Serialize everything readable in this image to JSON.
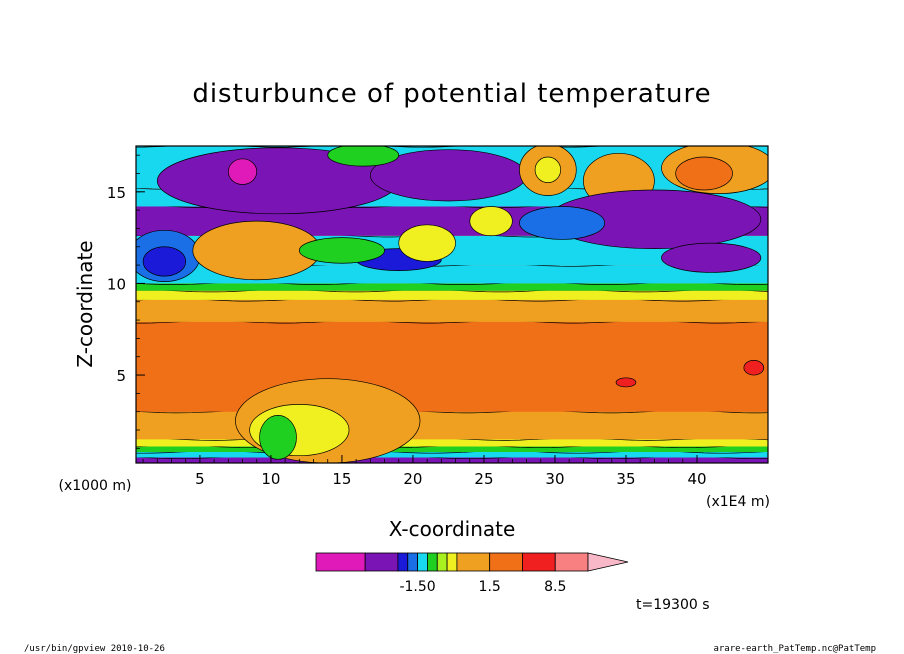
{
  "chart_data": {
    "type": "heatmap",
    "title": "disturbunce of potential temperature",
    "xlabel": "X-coordinate",
    "ylabel": "Z-coordinate",
    "x_unit_left": "(x1000 m)",
    "x_unit_right": "(x1E4 m)",
    "x_ticks": [
      "5",
      "10",
      "15",
      "20",
      "25",
      "30",
      "35",
      "40"
    ],
    "y_ticks": [
      "5",
      "10",
      "15"
    ],
    "xlim": [
      0.5,
      45
    ],
    "ylim": [
      0.2,
      17.5
    ],
    "colorbar": {
      "colors": [
        "#e01ab8",
        "#7a14b4",
        "#1a1ad8",
        "#1a6ee6",
        "#18d8f0",
        "#20d020",
        "#a8f020",
        "#f0f020",
        "#f0a020",
        "#f07018",
        "#f02020",
        "#f88080",
        "#f8b8c8"
      ],
      "labels": [
        {
          "text": "-1.50",
          "after_index": 3
        },
        {
          "text": "1.5",
          "after_index": 8
        },
        {
          "text": "8.5",
          "after_index": 10
        }
      ]
    },
    "bands": [
      {
        "z0": 0.2,
        "z1": 0.5,
        "color": "#7a14b4"
      },
      {
        "z0": 0.5,
        "z1": 0.8,
        "color": "#18d8f0"
      },
      {
        "z0": 0.8,
        "z1": 1.1,
        "color": "#20d020"
      },
      {
        "z0": 1.1,
        "z1": 1.5,
        "color": "#f0f020"
      },
      {
        "z0": 1.5,
        "z1": 3.0,
        "color": "#f0a020"
      },
      {
        "z0": 3.0,
        "z1": 7.9,
        "color": "#f07018"
      },
      {
        "z0": 7.9,
        "z1": 9.1,
        "color": "#f0a020"
      },
      {
        "z0": 9.1,
        "z1": 9.6,
        "color": "#f0f020"
      },
      {
        "z0": 9.6,
        "z1": 10.0,
        "color": "#20d020"
      },
      {
        "z0": 10.0,
        "z1": 11.0,
        "color": "#18d8f0"
      },
      {
        "z0": 11.0,
        "z1": 12.6,
        "color": "#18d8f0"
      },
      {
        "z0": 12.6,
        "z1": 14.2,
        "color": "#7a14b4"
      },
      {
        "z0": 14.2,
        "z1": 15.2,
        "color": "#18d8f0"
      },
      {
        "z0": 15.2,
        "z1": 17.5,
        "color": "#18d8f0"
      }
    ],
    "blobs": [
      {
        "x": 10.5,
        "z": 15.6,
        "rx": 8.5,
        "rz": 1.8,
        "color": "#7a14b4"
      },
      {
        "x": 22.5,
        "z": 15.9,
        "rx": 5.5,
        "rz": 1.4,
        "color": "#7a14b4"
      },
      {
        "x": 8.0,
        "z": 16.1,
        "rx": 1.0,
        "rz": 0.7,
        "color": "#e01ab8"
      },
      {
        "x": 16.5,
        "z": 17.0,
        "rx": 2.5,
        "rz": 0.6,
        "color": "#20d020"
      },
      {
        "x": 29.5,
        "z": 16.2,
        "rx": 2.0,
        "rz": 1.4,
        "color": "#f0a020"
      },
      {
        "x": 29.5,
        "z": 16.2,
        "rx": 0.9,
        "rz": 0.7,
        "color": "#f0f020"
      },
      {
        "x": 34.5,
        "z": 15.6,
        "rx": 2.5,
        "rz": 1.5,
        "color": "#f0a020"
      },
      {
        "x": 41.5,
        "z": 16.3,
        "rx": 4.0,
        "rz": 1.4,
        "color": "#f0a020"
      },
      {
        "x": 40.5,
        "z": 16.0,
        "rx": 2.0,
        "rz": 0.9,
        "color": "#f07018"
      },
      {
        "x": 37.0,
        "z": 13.5,
        "rx": 7.5,
        "rz": 1.6,
        "color": "#7a14b4"
      },
      {
        "x": 41.0,
        "z": 11.4,
        "rx": 3.5,
        "rz": 0.8,
        "color": "#7a14b4"
      },
      {
        "x": 30.5,
        "z": 13.3,
        "rx": 3.0,
        "rz": 0.9,
        "color": "#1a6ee6"
      },
      {
        "x": 2.5,
        "z": 11.5,
        "rx": 2.5,
        "rz": 1.4,
        "color": "#1a6ee6"
      },
      {
        "x": 2.5,
        "z": 11.2,
        "rx": 1.5,
        "rz": 0.8,
        "color": "#1a1ad8"
      },
      {
        "x": 9.0,
        "z": 11.8,
        "rx": 4.5,
        "rz": 1.6,
        "color": "#f0a020"
      },
      {
        "x": 19.0,
        "z": 11.3,
        "rx": 3.0,
        "rz": 0.6,
        "color": "#1a1ad8"
      },
      {
        "x": 21.0,
        "z": 12.2,
        "rx": 2.0,
        "rz": 1.0,
        "color": "#f0f020"
      },
      {
        "x": 25.5,
        "z": 13.4,
        "rx": 1.5,
        "rz": 0.8,
        "color": "#f0f020"
      },
      {
        "x": 15.0,
        "z": 11.8,
        "rx": 3.0,
        "rz": 0.7,
        "color": "#20d020"
      },
      {
        "x": 14.0,
        "z": 2.5,
        "rx": 6.5,
        "rz": 2.3,
        "color": "#f0a020"
      },
      {
        "x": 12.0,
        "z": 2.0,
        "rx": 3.5,
        "rz": 1.4,
        "color": "#f0f020"
      },
      {
        "x": 10.5,
        "z": 1.6,
        "rx": 1.3,
        "rz": 1.2,
        "color": "#20d020"
      },
      {
        "x": 35.0,
        "z": 4.6,
        "rx": 0.7,
        "rz": 0.25,
        "color": "#f02020"
      },
      {
        "x": 44.0,
        "z": 5.4,
        "rx": 0.7,
        "rz": 0.4,
        "color": "#f02020"
      }
    ],
    "time_label": "t=19300 s"
  },
  "footer": {
    "left": "/usr/bin/gpview  2010-10-26",
    "right": "arare-earth_PatTemp.nc@PatTemp"
  }
}
